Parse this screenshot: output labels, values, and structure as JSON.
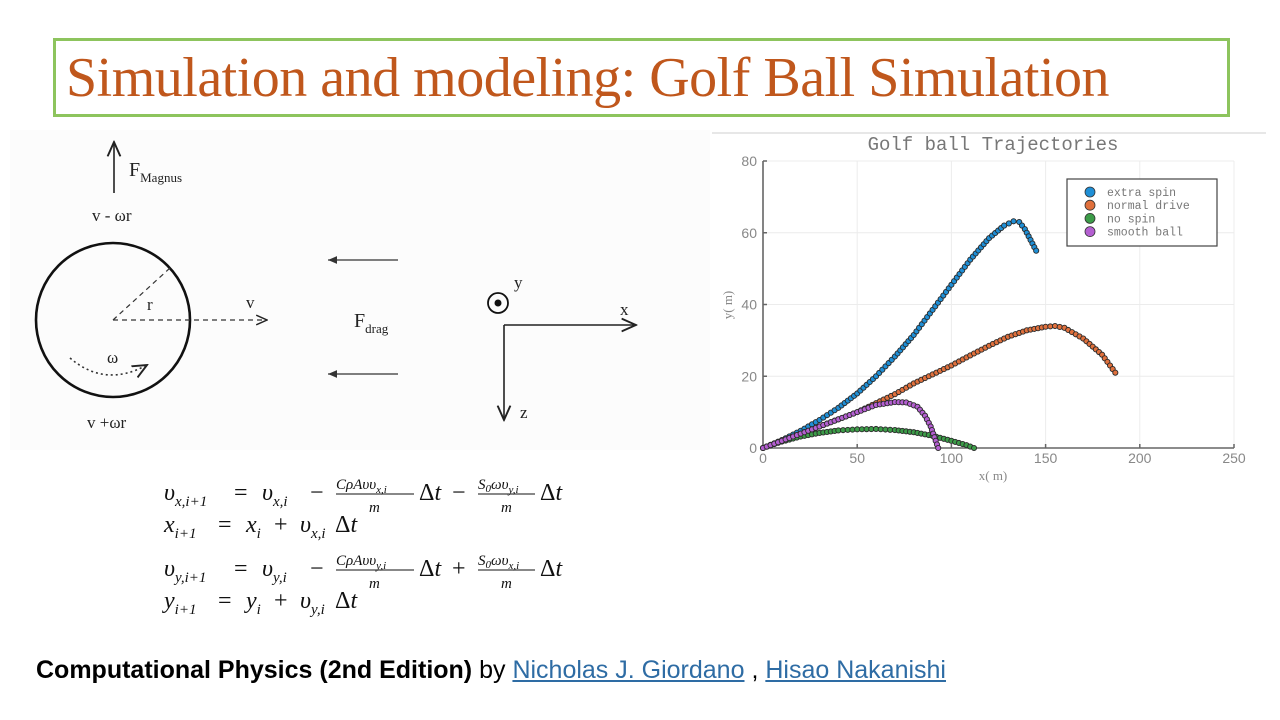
{
  "slide": {
    "title": "Simulation and modeling: Golf Ball Simulation"
  },
  "diagram": {
    "magnus_force_label": "F",
    "magnus_force_subscript": "Magnus",
    "top_speed_label": "v - ωr",
    "bottom_speed_label": "v +ωr",
    "radius_label": "r",
    "velocity_label": "v",
    "spin_label": "ω",
    "drag_force_label": "F",
    "drag_force_subscript": "drag",
    "axis_y_label": "y",
    "axis_x_label": "x",
    "axis_z_label": "z"
  },
  "equations": [
    "v_{x,i+1} = v_{x,i} − (CρAv v_{x,i}/m)Δt − (S₀ω v_{y,i}/m)Δt",
    "x_{i+1} = x_i + v_{x,i}Δt",
    "v_{y,i+1} = v_{y,i} − (CρAv v_{y,i}/m)Δt + (S₀ω v_{x,i}/m)Δt",
    "y_{i+1} = y_i + v_{y,i}Δt"
  ],
  "footer": {
    "book_title": "Computational Physics (2nd Edition)",
    "by": " by ",
    "author1": "Nicholas J. Giordano",
    "separator": " , ",
    "author2": "Hisao Nakanishi"
  },
  "chart_data": {
    "type": "scatter",
    "title": "Golf ball Trajectories",
    "xlabel": "x( m)",
    "ylabel": "y( m)",
    "xlim": [
      0,
      250
    ],
    "ylim": [
      0,
      80
    ],
    "xticks": [
      0,
      50,
      100,
      150,
      200,
      250
    ],
    "yticks": [
      0,
      20,
      40,
      60,
      80
    ],
    "grid": true,
    "legend_position": "upper right",
    "series": [
      {
        "name": "extra spin",
        "color": "#1f8fd6",
        "x": [
          0,
          10,
          20,
          30,
          40,
          50,
          60,
          70,
          80,
          90,
          100,
          110,
          120,
          128,
          133,
          136,
          139,
          142,
          145
        ],
        "y": [
          0,
          2.2,
          4.8,
          7.8,
          11.2,
          15.2,
          20,
          25.5,
          31.5,
          38.5,
          45.5,
          52.5,
          58.5,
          62,
          63.2,
          63,
          61,
          58,
          55
        ]
      },
      {
        "name": "normal drive",
        "color": "#e0703c",
        "x": [
          0,
          10,
          20,
          30,
          40,
          50,
          60,
          70,
          80,
          90,
          100,
          110,
          120,
          130,
          140,
          150,
          155,
          160,
          170,
          180,
          187
        ],
        "y": [
          0,
          2,
          4,
          6,
          8,
          10,
          12.5,
          15,
          18,
          20.5,
          23,
          25.8,
          28.5,
          31,
          32.8,
          33.8,
          34,
          33.5,
          30.5,
          26,
          21
        ]
      },
      {
        "name": "no spin",
        "color": "#3c9c48",
        "x": [
          0,
          10,
          20,
          30,
          40,
          50,
          60,
          70,
          80,
          90,
          100,
          108,
          112
        ],
        "y": [
          0,
          1.8,
          3.2,
          4.2,
          4.9,
          5.2,
          5.3,
          5,
          4.4,
          3.4,
          2,
          0.8,
          0
        ]
      },
      {
        "name": "smooth ball",
        "color": "#b45fd1",
        "x": [
          0,
          10,
          20,
          30,
          40,
          50,
          60,
          70,
          76,
          82,
          86,
          89,
          91,
          93
        ],
        "y": [
          0,
          2,
          4,
          6,
          8,
          10,
          12,
          12.8,
          12.7,
          11.5,
          9,
          6,
          3,
          0
        ]
      }
    ]
  }
}
